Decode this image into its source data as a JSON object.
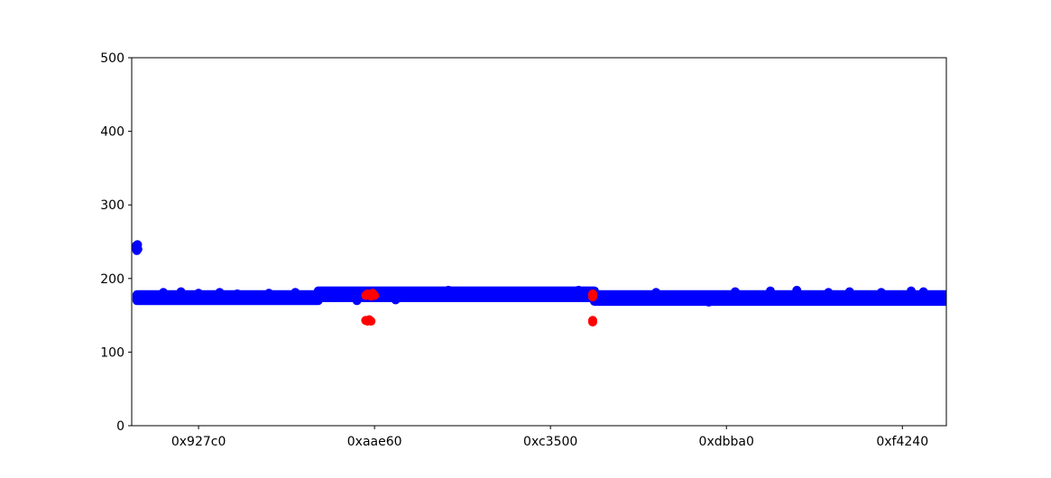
{
  "chart_data": {
    "type": "scatter",
    "title": "",
    "xlabel": "",
    "ylabel": "",
    "xlim": [
      562000,
      1025000
    ],
    "ylim": [
      0,
      500
    ],
    "grid": false,
    "x_ticks": [
      {
        "value": 600000,
        "label": "0x927c0"
      },
      {
        "value": 700000,
        "label": "0xaae60"
      },
      {
        "value": 800000,
        "label": "0xc3500"
      },
      {
        "value": 900000,
        "label": "0xdbba0"
      },
      {
        "value": 1000000,
        "label": "0xf4240"
      }
    ],
    "y_ticks": [
      {
        "value": 0,
        "label": "0"
      },
      {
        "value": 100,
        "label": "100"
      },
      {
        "value": 200,
        "label": "200"
      },
      {
        "value": 300,
        "label": "300"
      },
      {
        "value": 400,
        "label": "400"
      },
      {
        "value": 500,
        "label": "500"
      }
    ],
    "series": [
      {
        "color": "#0000ff",
        "bands": [
          {
            "x_start": 565000,
            "x_end": 668000,
            "y_low": 170,
            "y_high": 178
          },
          {
            "x_start": 668000,
            "x_end": 825000,
            "y_low": 174,
            "y_high": 183
          },
          {
            "x_start": 825000,
            "x_end": 1025000,
            "y_low": 169,
            "y_high": 178
          }
        ],
        "points": [
          [
            564500,
            241
          ],
          [
            564700,
            245
          ],
          [
            564900,
            238
          ],
          [
            565100,
            243
          ],
          [
            565300,
            246
          ],
          [
            565500,
            240
          ],
          [
            580000,
            181
          ],
          [
            590000,
            182
          ],
          [
            600000,
            180
          ],
          [
            612000,
            181
          ],
          [
            622000,
            179
          ],
          [
            640000,
            180
          ],
          [
            655000,
            181
          ],
          [
            690000,
            170
          ],
          [
            712000,
            171
          ],
          [
            742000,
            184
          ],
          [
            800000,
            176
          ],
          [
            816000,
            184
          ],
          [
            860000,
            181
          ],
          [
            890000,
            168
          ],
          [
            905000,
            182
          ],
          [
            925000,
            183
          ],
          [
            940000,
            184
          ],
          [
            958000,
            181
          ],
          [
            970000,
            182
          ],
          [
            988000,
            181
          ],
          [
            1005000,
            183
          ],
          [
            1012000,
            182
          ]
        ]
      },
      {
        "color": "#ff0000",
        "points": [
          [
            695000,
            177
          ],
          [
            696000,
            179
          ],
          [
            697000,
            178
          ],
          [
            698000,
            176
          ],
          [
            699000,
            180
          ],
          [
            700000,
            177
          ],
          [
            695000,
            143
          ],
          [
            696000,
            142
          ],
          [
            697000,
            144
          ],
          [
            698000,
            142
          ],
          [
            824000,
            177
          ],
          [
            824000,
            179
          ],
          [
            824000,
            175
          ],
          [
            824000,
            143
          ],
          [
            824000,
            141
          ]
        ]
      }
    ]
  }
}
